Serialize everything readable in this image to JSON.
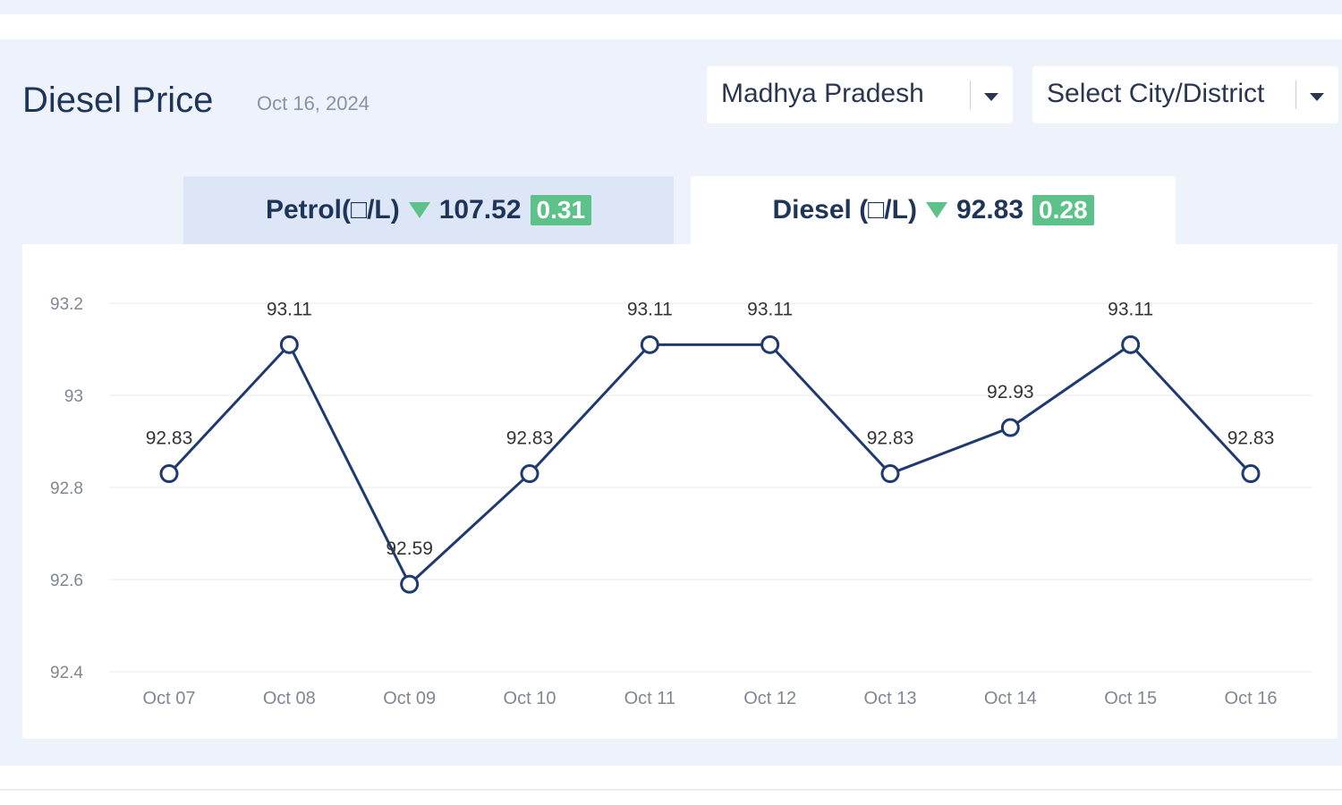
{
  "header": {
    "title": "Diesel Price",
    "date": "Oct 16, 2024"
  },
  "filters": {
    "state": "Madhya Pradesh",
    "city_placeholder": "Select City/District"
  },
  "tabs": {
    "petrol": {
      "label": "Petrol(□/L)",
      "price": "107.52",
      "change": "0.31"
    },
    "diesel": {
      "label": "Diesel (□/L)",
      "price": "92.83",
      "change": "0.28"
    }
  },
  "colors": {
    "line": "#1e3a6e",
    "badge": "#5cc28a",
    "panel": "#eef2fa"
  },
  "chart_data": {
    "type": "line",
    "categories": [
      "Oct 07",
      "Oct 08",
      "Oct 09",
      "Oct 10",
      "Oct 11",
      "Oct 12",
      "Oct 13",
      "Oct 14",
      "Oct 15",
      "Oct 16"
    ],
    "series": [
      {
        "values": [
          92.83,
          93.11,
          92.59,
          92.83,
          93.11,
          93.11,
          92.83,
          92.93,
          93.11,
          92.83
        ]
      }
    ],
    "data_labels": [
      "92.83",
      "93.11",
      "92.59",
      "92.83",
      "93.11",
      "93.11",
      "92.83",
      "92.93",
      "93.11",
      "92.83"
    ],
    "ylim": [
      92.4,
      93.2
    ],
    "yticks": [
      92.4,
      92.6,
      92.8,
      93,
      93.2
    ],
    "ytick_labels": [
      "92.4",
      "92.6",
      "92.8",
      "93",
      "93.2"
    ],
    "grid": true
  }
}
